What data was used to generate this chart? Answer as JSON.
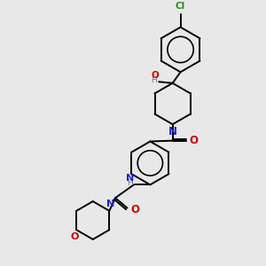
{
  "bg_color": "#e8e8e8",
  "bond_color": "#000000",
  "n_color": "#2222cc",
  "o_color": "#cc0000",
  "cl_color": "#228B22",
  "h_color": "#777777",
  "lw": 1.4,
  "xlim": [
    0,
    10
  ],
  "ylim": [
    0,
    10
  ]
}
